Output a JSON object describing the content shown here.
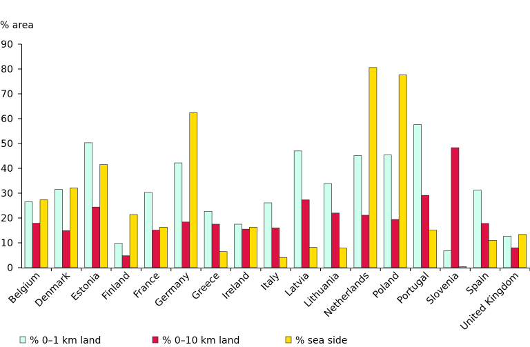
{
  "chart_data": {
    "type": "bar",
    "ylabel": "% area",
    "ylim": [
      0,
      90
    ],
    "yticks": [
      0,
      10,
      20,
      30,
      40,
      50,
      60,
      70,
      80,
      90
    ],
    "grid": false,
    "legend_position": "bottom",
    "categories": [
      "Belgium",
      "Denmark",
      "Estonia",
      "Finland",
      "France",
      "Germany",
      "Greece",
      "Ireland",
      "Italy",
      "Latvia",
      "Lithuania",
      "Netherlands",
      "Poland",
      "Portugal",
      "Slovenia",
      "Spain",
      "United Kingdom"
    ],
    "series": [
      {
        "name": "% 0–1 km land",
        "color": "#ccffee",
        "values": [
          26.5,
          31.5,
          50.3,
          9.8,
          30.3,
          42.2,
          22.7,
          17.5,
          26.1,
          47.0,
          33.9,
          45.1,
          45.4,
          57.6,
          6.8,
          31.2,
          12.7
        ]
      },
      {
        "name": "% 0–10 km land",
        "color": "#dd1144",
        "values": [
          17.9,
          14.9,
          24.4,
          4.8,
          15.1,
          18.4,
          17.5,
          15.5,
          16.0,
          27.3,
          22.0,
          21.1,
          19.4,
          29.1,
          48.3,
          17.8,
          8.0
        ]
      },
      {
        "name": "% sea side",
        "color": "#ffdd00",
        "values": [
          27.3,
          32.1,
          41.5,
          21.4,
          16.3,
          62.4,
          6.5,
          16.3,
          4.1,
          8.2,
          7.9,
          80.6,
          77.6,
          15.1,
          0.4,
          11.0,
          13.4
        ]
      }
    ]
  }
}
